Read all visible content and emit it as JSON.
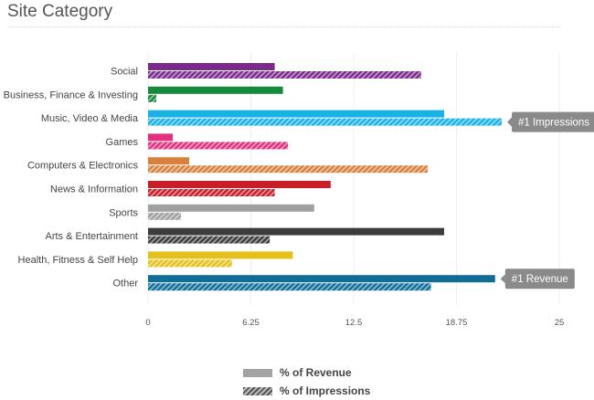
{
  "title": "Site Category",
  "chart_data": {
    "type": "bar",
    "orientation": "horizontal",
    "categories": [
      "Social",
      "Business, Finance & Investing",
      "Music, Video & Media",
      "Games",
      "Computers & Electronics",
      "News & Information",
      "Sports",
      "Arts & Entertainment",
      "Health, Fitness & Self Help",
      "Other"
    ],
    "colors": [
      "#7b2a8c",
      "#138a3c",
      "#18b2e6",
      "#e0307e",
      "#d7813c",
      "#c81e28",
      "#a0a0a0",
      "#3c3c3c",
      "#e3c11a",
      "#0f6d98"
    ],
    "series": [
      {
        "name": "% of Revenue",
        "values": [
          7.7,
          8.2,
          18.0,
          1.5,
          2.5,
          11.1,
          10.1,
          18.0,
          8.8,
          21.1
        ],
        "style": "solid"
      },
      {
        "name": "% of Impressions",
        "values": [
          16.6,
          0.5,
          21.5,
          8.5,
          17.0,
          7.7,
          2.0,
          7.4,
          5.1,
          17.2
        ],
        "style": "hatched"
      }
    ],
    "xlim": [
      0,
      25
    ],
    "xticks": [
      "0",
      "6.25",
      "12.5",
      "18.75",
      "25"
    ],
    "grid": true,
    "annotations": [
      {
        "text": "#1 Impressions",
        "category_index": 2,
        "series_index": 1
      },
      {
        "text": "#1 Revenue",
        "category_index": 9,
        "series_index": 0
      }
    ],
    "legend": {
      "position": "bottom-center"
    }
  }
}
